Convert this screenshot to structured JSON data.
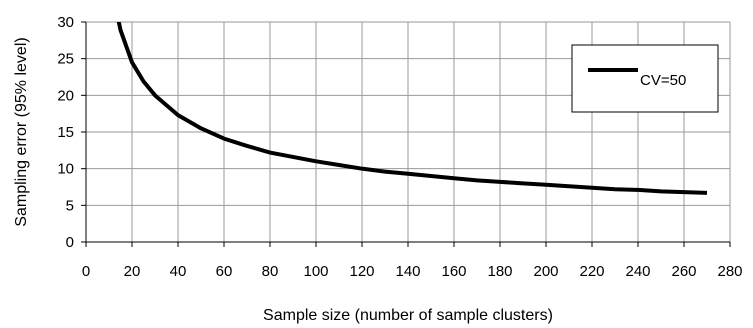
{
  "chart_data": {
    "type": "line",
    "title": "",
    "xlabel": "Sample size (number of sample clusters)",
    "ylabel": "Sampling error (95% level)",
    "xlim": [
      0,
      280
    ],
    "ylim": [
      0,
      30
    ],
    "x_ticks": [
      0,
      20,
      40,
      60,
      80,
      100,
      120,
      140,
      160,
      180,
      200,
      220,
      240,
      260,
      280
    ],
    "y_ticks": [
      0,
      5,
      10,
      15,
      20,
      25,
      30
    ],
    "grid": true,
    "legend_position": "top-right",
    "series": [
      {
        "name": "CV=50",
        "color": "#000000",
        "x": [
          12,
          15,
          20,
          25,
          30,
          40,
          50,
          60,
          70,
          80,
          90,
          100,
          110,
          120,
          130,
          140,
          150,
          160,
          170,
          180,
          190,
          200,
          210,
          220,
          230,
          240,
          250,
          260,
          270
        ],
        "y": [
          33.4,
          28.9,
          24.5,
          21.9,
          20.0,
          17.3,
          15.5,
          14.1,
          13.1,
          12.2,
          11.6,
          11.0,
          10.5,
          10.0,
          9.6,
          9.3,
          9.0,
          8.7,
          8.4,
          8.2,
          8.0,
          7.8,
          7.6,
          7.4,
          7.2,
          7.1,
          6.9,
          6.8,
          6.7
        ]
      }
    ]
  }
}
